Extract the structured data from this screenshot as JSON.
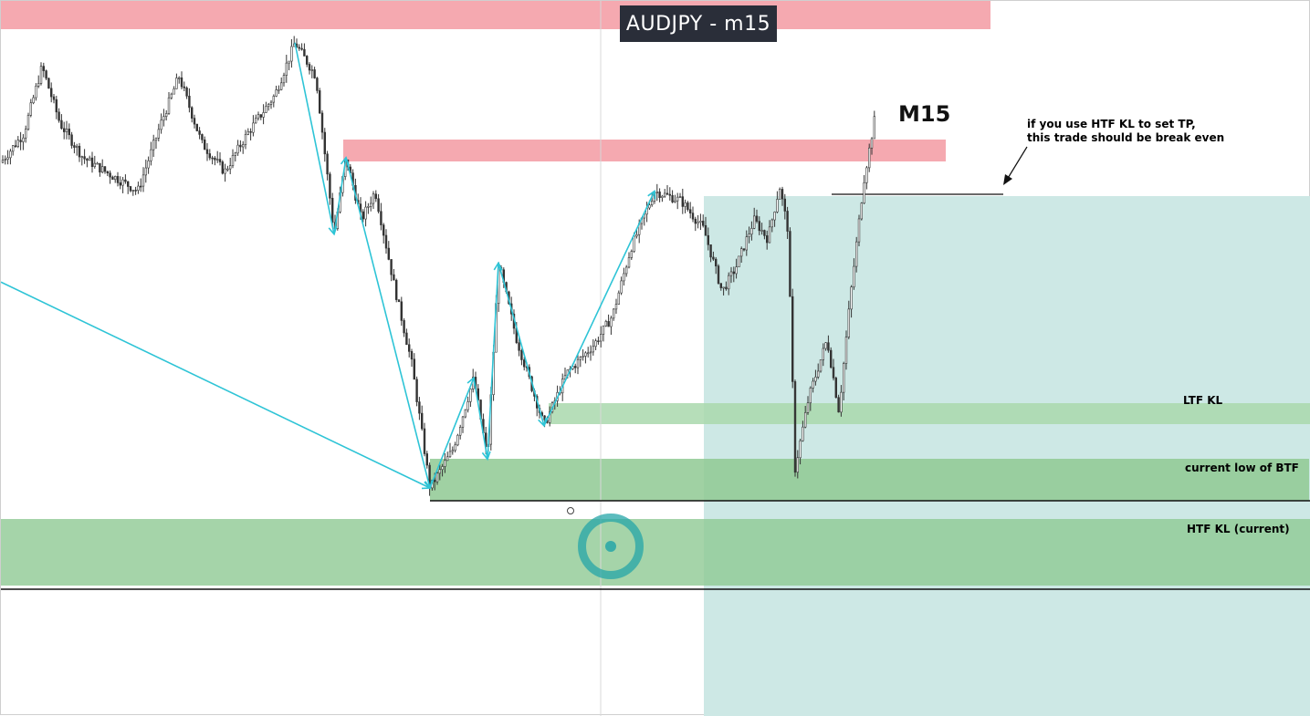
{
  "header": {
    "symbol_title": "AUDJPY - m15"
  },
  "annotations": {
    "timeframe": "M15",
    "note_line1": "if you use HTF KL to set TP,",
    "note_line2": "this trade should be break even"
  },
  "zones": {
    "ltf_kl": "LTF KL",
    "current_low": "current low of BTF",
    "htf_kl": "HTF KL (current)"
  },
  "colors": {
    "supply": "#f5a9b0",
    "demand_light": "#b6dcb8",
    "demand": "#8fc993",
    "position_zone": "#cde8e5",
    "swing_line": "#2ec4d6",
    "candle": "#333333"
  },
  "chart_data": {
    "type": "candlestick",
    "title": "AUDJPY - m15",
    "xlabel": "",
    "ylabel": "",
    "grid": false,
    "legend": "none",
    "price_path": [
      [
        0,
        0.72
      ],
      [
        25,
        0.78
      ],
      [
        45,
        0.92
      ],
      [
        65,
        0.8
      ],
      [
        90,
        0.73
      ],
      [
        115,
        0.7
      ],
      [
        150,
        0.66
      ],
      [
        175,
        0.8
      ],
      [
        195,
        0.9
      ],
      [
        220,
        0.76
      ],
      [
        245,
        0.7
      ],
      [
        270,
        0.78
      ],
      [
        300,
        0.86
      ],
      [
        322,
        0.97
      ],
      [
        345,
        0.9
      ],
      [
        365,
        0.57
      ],
      [
        378,
        0.73
      ],
      [
        395,
        0.6
      ],
      [
        410,
        0.66
      ],
      [
        430,
        0.47
      ],
      [
        450,
        0.3
      ],
      [
        470,
        0.04
      ],
      [
        495,
        0.12
      ],
      [
        518,
        0.27
      ],
      [
        533,
        0.1
      ],
      [
        545,
        0.51
      ],
      [
        565,
        0.35
      ],
      [
        595,
        0.17
      ],
      [
        620,
        0.28
      ],
      [
        650,
        0.34
      ],
      [
        670,
        0.4
      ],
      [
        690,
        0.54
      ],
      [
        716,
        0.66
      ],
      [
        745,
        0.64
      ],
      [
        770,
        0.58
      ],
      [
        790,
        0.45
      ],
      [
        805,
        0.5
      ],
      [
        825,
        0.6
      ],
      [
        840,
        0.56
      ],
      [
        853,
        0.67
      ],
      [
        862,
        0.58
      ],
      [
        870,
        0.08
      ],
      [
        885,
        0.23
      ],
      [
        905,
        0.35
      ],
      [
        918,
        0.2
      ],
      [
        930,
        0.43
      ],
      [
        945,
        0.68
      ],
      [
        958,
        0.82
      ]
    ],
    "swing_segments": [
      [
        [
          0,
          0.47
        ],
        [
          470,
          0.04
        ]
      ],
      [
        [
          322,
          0.97
        ],
        [
          365,
          0.57
        ]
      ],
      [
        [
          365,
          0.57
        ],
        [
          378,
          0.73
        ]
      ],
      [
        [
          378,
          0.73
        ],
        [
          470,
          0.04
        ]
      ],
      [
        [
          470,
          0.04
        ],
        [
          518,
          0.27
        ]
      ],
      [
        [
          518,
          0.27
        ],
        [
          533,
          0.1
        ]
      ],
      [
        [
          533,
          0.1
        ],
        [
          545,
          0.51
        ]
      ],
      [
        [
          545,
          0.51
        ],
        [
          595,
          0.17
        ]
      ],
      [
        [
          595,
          0.17
        ],
        [
          716,
          0.66
        ]
      ]
    ]
  }
}
